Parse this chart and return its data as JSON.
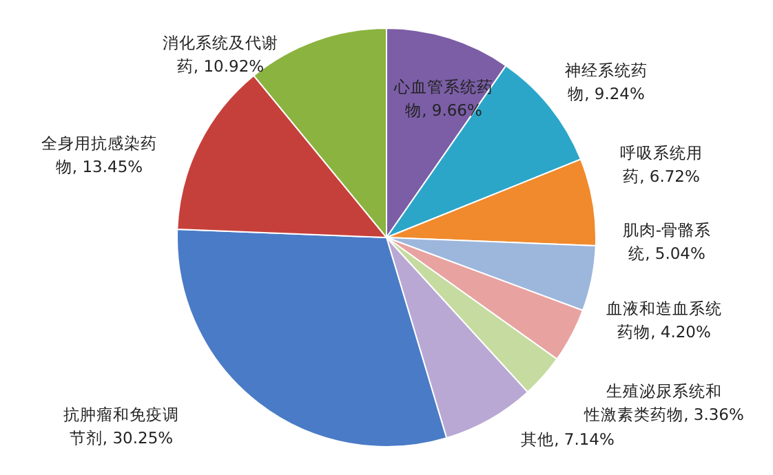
{
  "chart_data": {
    "type": "pie",
    "categories": [
      "心血管系统药物",
      "神经系统药物",
      "呼吸系统用药",
      "肌肉-骨骼系统",
      "血液和造血系统药物",
      "生殖泌尿系统和性激素类药物",
      "其他",
      "抗肿瘤和免疫调节剂",
      "全身用抗感染药物",
      "消化系统及代谢药"
    ],
    "values": [
      9.66,
      9.24,
      6.72,
      5.04,
      4.2,
      3.36,
      7.14,
      30.25,
      13.45,
      10.92
    ],
    "value_labels": [
      "9.66%",
      "9.24%",
      "6.72%",
      "5.04%",
      "4.20%",
      "3.36%",
      "7.14%",
      "30.25%",
      "13.45%",
      "10.92%"
    ],
    "colors": [
      "#7b5ea6",
      "#2ba6c9",
      "#f08a2c",
      "#9db6dc",
      "#e8a2a0",
      "#c6dba0",
      "#b8a8d3",
      "#4a7bc6",
      "#c6403b",
      "#8bb33f"
    ]
  }
}
